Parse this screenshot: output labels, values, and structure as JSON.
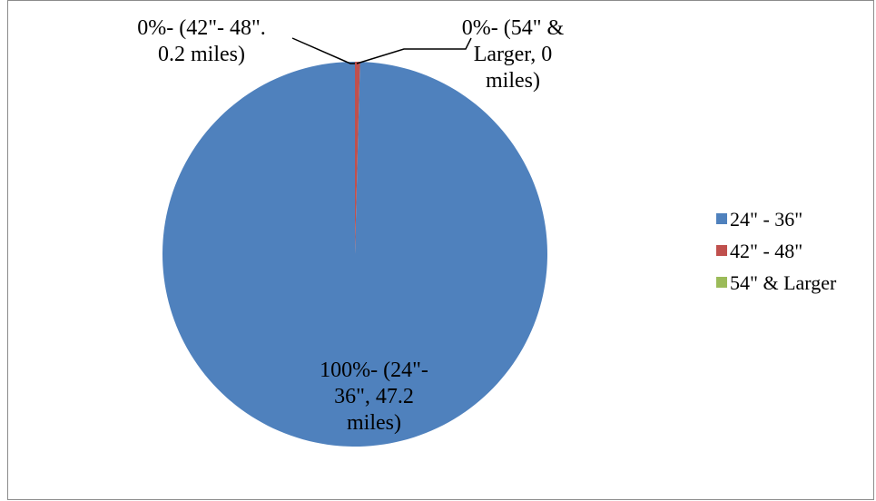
{
  "chart_data": {
    "type": "pie",
    "categories": [
      "24\" - 36\"",
      "42\" - 48\"",
      "54\" & Larger"
    ],
    "values": [
      47.2,
      0.2,
      0
    ],
    "colors": [
      "#4f81bd",
      "#c0504d",
      "#9bbb59"
    ],
    "data_labels": [
      [
        "100%- (24\"-",
        "36\", 47.2",
        "miles)"
      ],
      [
        "0%- (42\"- 48\".",
        "0.2 miles)"
      ],
      [
        "0%- (54\" &",
        "Larger, 0",
        "miles)"
      ]
    ],
    "legend_position": "right"
  }
}
